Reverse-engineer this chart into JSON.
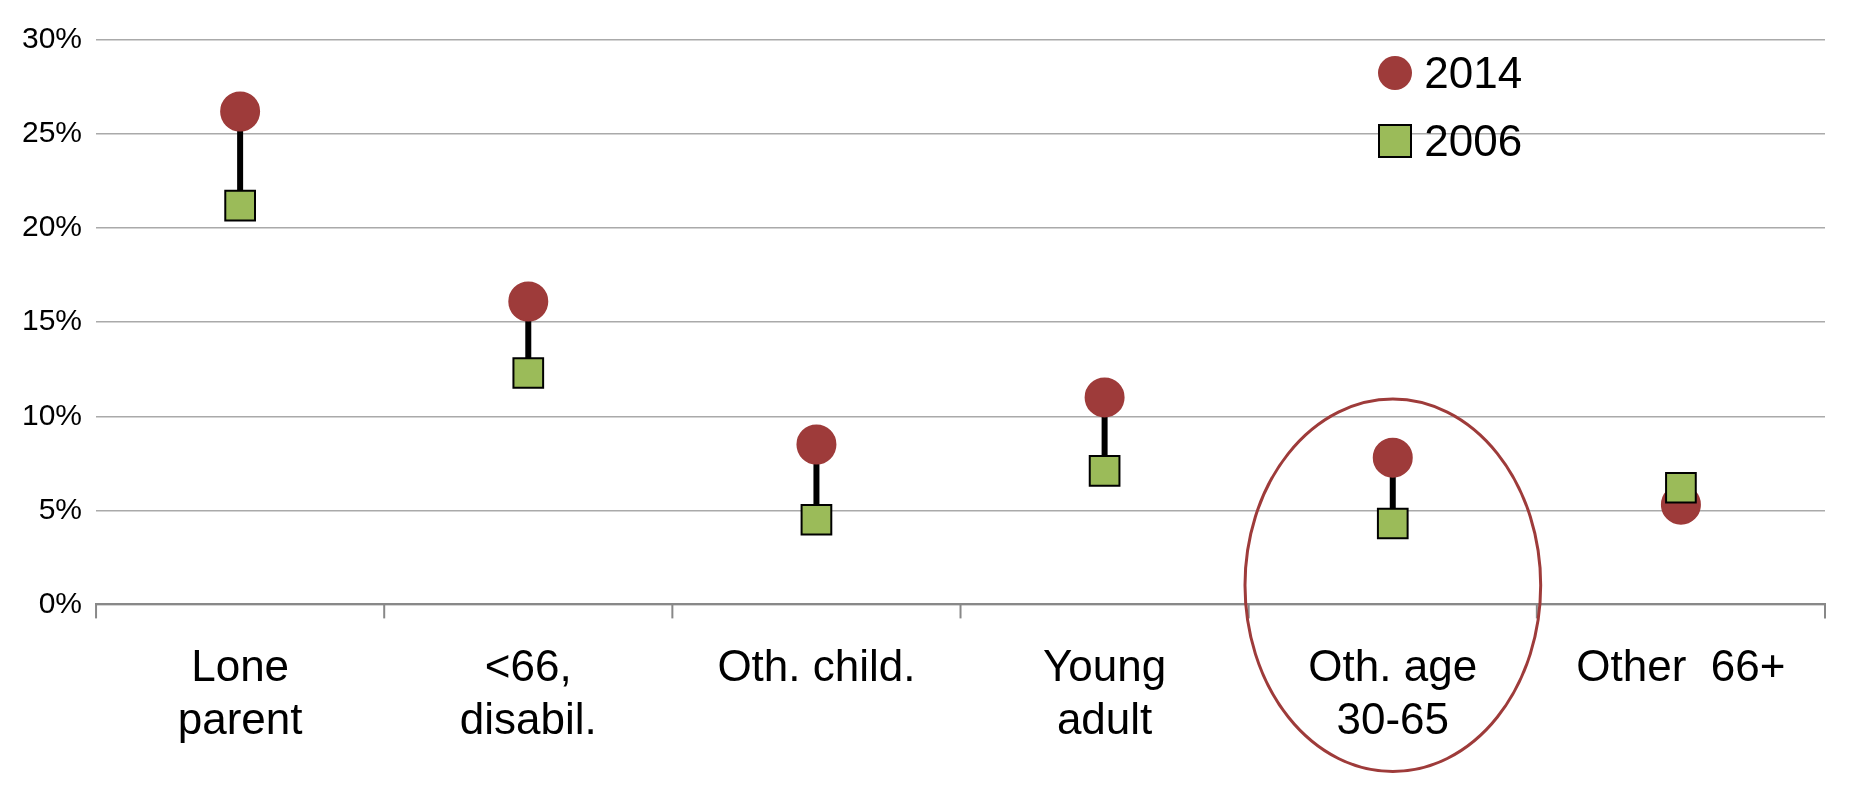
{
  "chart_data": {
    "type": "scatter",
    "categories": [
      "Lone\nparent",
      "<66,\ndisabil.",
      "Oth. child.",
      "Young\nadult",
      "Oth. age\n30-65",
      "Other  66+"
    ],
    "series": [
      {
        "name": "2014",
        "color": "#9e3b3a",
        "marker": "circle",
        "values": [
          26.2,
          16.1,
          8.5,
          11.0,
          7.8,
          5.3
        ]
      },
      {
        "name": "2006",
        "color": "#9bbb59",
        "marker": "square",
        "values": [
          21.2,
          12.3,
          4.5,
          7.1,
          4.3,
          6.2
        ]
      }
    ],
    "ylim": [
      0,
      30
    ],
    "yticks": [
      {
        "value": 0,
        "label": "0%"
      },
      {
        "value": 5,
        "label": "5%"
      },
      {
        "value": 10,
        "label": "10%"
      },
      {
        "value": 15,
        "label": "15%"
      },
      {
        "value": 20,
        "label": "20%"
      },
      {
        "value": 25,
        "label": "25%"
      },
      {
        "value": 30,
        "label": "30%"
      }
    ],
    "grid": "y",
    "legend": "top right"
  }
}
